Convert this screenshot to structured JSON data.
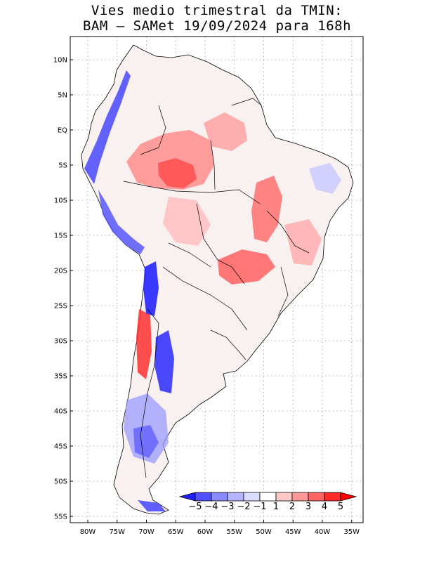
{
  "title_line1": "Vies medio trimestral da TMIN:",
  "title_line2": "BAM – SAMet 19/09/2024  para 168h",
  "lat_labels": [
    "10N",
    "5N",
    "EQ",
    "5S",
    "10S",
    "15S",
    "20S",
    "25S",
    "30S",
    "35S",
    "40S",
    "45S",
    "50S",
    "55S"
  ],
  "lat_values": [
    10,
    5,
    0,
    -5,
    -10,
    -15,
    -20,
    -25,
    -30,
    -35,
    -40,
    -45,
    -50,
    -55
  ],
  "lon_labels": [
    "80W",
    "75W",
    "70W",
    "65W",
    "60W",
    "55W",
    "50W",
    "45W",
    "40W",
    "35W"
  ],
  "lon_values": [
    -80,
    -75,
    -70,
    -65,
    -60,
    -55,
    -50,
    -45,
    -40,
    -35
  ],
  "colorbar": {
    "labels": [
      "−5",
      "−4",
      "−3",
      "−2",
      "−1",
      "1",
      "2",
      "3",
      "4",
      "5"
    ],
    "colors": [
      "#2020ff",
      "#5050ff",
      "#8888ff",
      "#b4b4ff",
      "#dcdcff",
      "#ffffff",
      "#ffc8c8",
      "#ff9898",
      "#ff6464",
      "#ff2a2a",
      "#ff0000"
    ]
  },
  "colors": {
    "land": "#ffffff",
    "ocean": "#ffffff",
    "border": "#000000",
    "grid": "#999999"
  }
}
